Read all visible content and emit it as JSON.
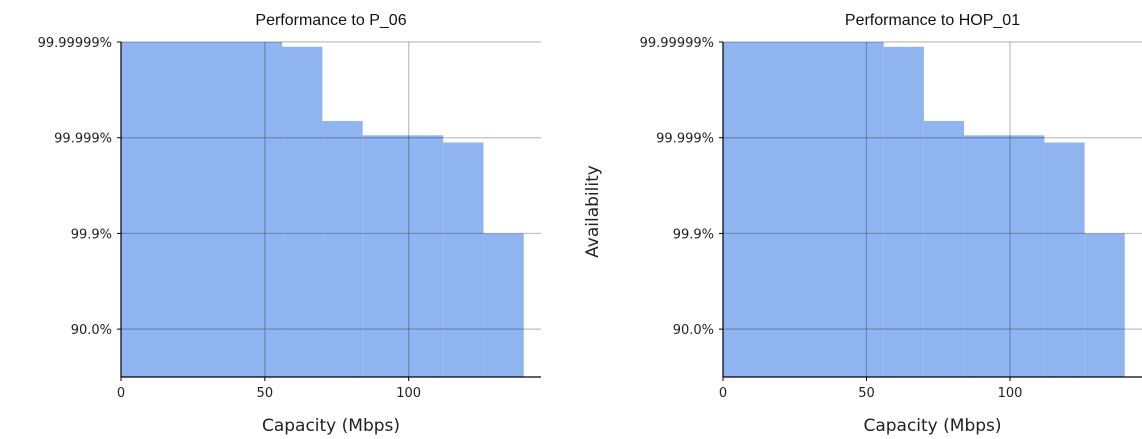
{
  "chart_data": [
    {
      "type": "area",
      "title": "Performance to P_06",
      "xlabel": "Capacity (Mbps)",
      "ylabel": "",
      "xlim": [
        0,
        146
      ],
      "x_ticks": [
        0,
        50,
        100
      ],
      "y_scale": "availability-nines",
      "y_ticks": [
        "90.0%",
        "99.9%",
        "99.999%",
        "99.99999%"
      ],
      "grid": true,
      "fill_color": "#8fb4ef",
      "steps": [
        {
          "x_start": 0,
          "x_end": 56,
          "nines": 7.0
        },
        {
          "x_start": 56,
          "x_end": 70,
          "nines": 6.9
        },
        {
          "x_start": 70,
          "x_end": 84,
          "nines": 5.35
        },
        {
          "x_start": 84,
          "x_end": 112,
          "nines": 5.05
        },
        {
          "x_start": 112,
          "x_end": 126,
          "nines": 4.9
        },
        {
          "x_start": 126,
          "x_end": 140,
          "nines": 3.0
        }
      ]
    },
    {
      "type": "area",
      "title": "Performance to HOP_01",
      "xlabel": "Capacity (Mbps)",
      "ylabel": "Availability",
      "xlim": [
        0,
        146
      ],
      "x_ticks": [
        0,
        50,
        100
      ],
      "y_scale": "availability-nines",
      "y_ticks": [
        "90.0%",
        "99.9%",
        "99.999%",
        "99.99999%"
      ],
      "grid": true,
      "fill_color": "#8fb4ef",
      "steps": [
        {
          "x_start": 0,
          "x_end": 56,
          "nines": 7.0
        },
        {
          "x_start": 56,
          "x_end": 70,
          "nines": 6.9
        },
        {
          "x_start": 70,
          "x_end": 84,
          "nines": 5.35
        },
        {
          "x_start": 84,
          "x_end": 112,
          "nines": 5.05
        },
        {
          "x_start": 112,
          "x_end": 126,
          "nines": 4.9
        },
        {
          "x_start": 126,
          "x_end": 140,
          "nines": 3.0
        }
      ]
    }
  ]
}
